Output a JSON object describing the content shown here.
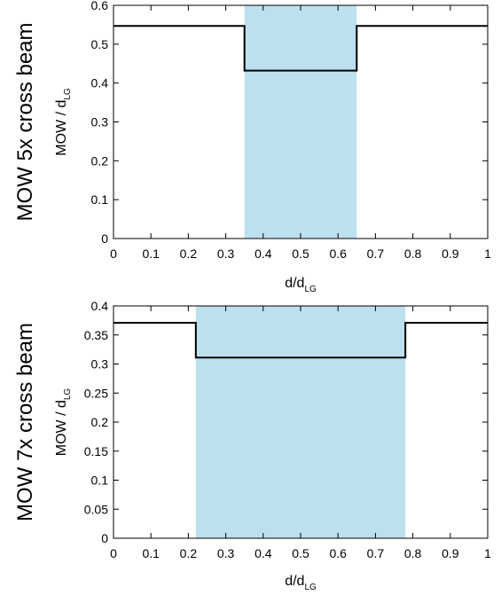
{
  "chart_data": [
    {
      "type": "line",
      "row_label": "MOW 5x cross beam",
      "xlabel": "d/d",
      "xlabel_sub": "LG",
      "ylabel": "MOW / d",
      "ylabel_sub": "LG",
      "xlim": [
        0,
        1
      ],
      "ylim": [
        0,
        0.6
      ],
      "x_ticks": [
        "0",
        "0.1",
        "0.2",
        "0.3",
        "0.4",
        "0.5",
        "0.6",
        "0.7",
        "0.8",
        "0.9",
        "1"
      ],
      "y_ticks": [
        "0",
        "0.1",
        "0.2",
        "0.3",
        "0.4",
        "0.5",
        "0.6"
      ],
      "shaded_region": {
        "x": [
          0.35,
          0.65
        ],
        "color": "#bde0ee"
      },
      "series": [
        {
          "x": [
            0,
            0.35,
            0.35,
            0.65,
            0.65,
            1
          ],
          "y": [
            0.547,
            0.547,
            0.432,
            0.432,
            0.547,
            0.547
          ],
          "color": "#000000"
        }
      ],
      "grid": false
    },
    {
      "type": "line",
      "row_label": "MOW 7x cross beam",
      "xlabel": "d/d",
      "xlabel_sub": "LG",
      "ylabel": "MOW / d",
      "ylabel_sub": "LG",
      "xlim": [
        0,
        1
      ],
      "ylim": [
        0,
        0.4
      ],
      "x_ticks": [
        "0",
        "0.1",
        "0.2",
        "0.3",
        "0.4",
        "0.5",
        "0.6",
        "0.7",
        "0.8",
        "0.9",
        "1"
      ],
      "y_ticks": [
        "0",
        "0.05",
        "0.1",
        "0.15",
        "0.2",
        "0.25",
        "0.3",
        "0.35",
        "0.4"
      ],
      "shaded_region": {
        "x": [
          0.22,
          0.78
        ],
        "color": "#bde0ee"
      },
      "series": [
        {
          "x": [
            0,
            0.22,
            0.22,
            0.78,
            0.78,
            1
          ],
          "y": [
            0.371,
            0.371,
            0.311,
            0.311,
            0.371,
            0.371
          ],
          "color": "#000000"
        }
      ],
      "grid": false
    }
  ]
}
